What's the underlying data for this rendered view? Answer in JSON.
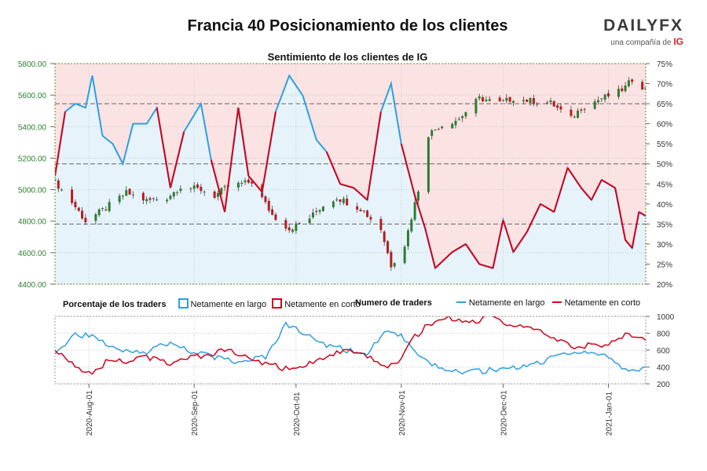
{
  "title": "Francia 40 Posicionamiento de los clientes",
  "subtitle": "Sentimiento de los clientes de IG",
  "brand": {
    "name": "DAILYFX",
    "tagline": "una compañía de",
    "ig": "IG"
  },
  "legend": {
    "pct_header": "Porcentaje de los traders",
    "pct_long": "Netamente en largo",
    "pct_short": "Netamente en corto",
    "num_header": "Numero de traders",
    "num_long": "Netamente en largo",
    "num_short": "Netamente en corto"
  },
  "colors": {
    "long": "#2f9fe0",
    "short": "#d0021b",
    "long_fill": "#e6f3fb",
    "short_fill": "#fbe3e3",
    "candle_up": "#2e7d32",
    "candle_down": "#b71c1c"
  },
  "chart_data": [
    {
      "type": "candlestick",
      "title": "Sentimiento de los clientes de IG",
      "x_range": [
        "2020-07-22",
        "2021-01-12"
      ],
      "x_ticks": [
        "2020-Aug-01",
        "2020-Sep-01",
        "2020-Oct-01",
        "2020-Nov-01",
        "2020-Dec-01",
        "2021-Jan-01"
      ],
      "y_left_ticks": [
        "4400.00",
        "4600.00",
        "4800.00",
        "5000.00",
        "5200.00",
        "5400.00",
        "5600.00",
        "5800.00"
      ],
      "ylim_left": [
        4400,
        5800
      ],
      "y_right_ticks": [
        "20%",
        "25%",
        "30%",
        "35%",
        "40%",
        "45%",
        "50%",
        "55%",
        "60%",
        "65%",
        "70%",
        "75%"
      ],
      "ylim_right": [
        20,
        75
      ],
      "reference_lines_pct": [
        35,
        50,
        65
      ],
      "close_anchors": [
        [
          "2020-07-22",
          5050
        ],
        [
          "2020-07-27",
          4920
        ],
        [
          "2020-07-31",
          4800
        ],
        [
          "2020-08-05",
          4870
        ],
        [
          "2020-08-12",
          4980
        ],
        [
          "2020-08-18",
          4930
        ],
        [
          "2020-08-24",
          4950
        ],
        [
          "2020-08-28",
          5020
        ],
        [
          "2020-09-03",
          5000
        ],
        [
          "2020-09-07",
          4960
        ],
        [
          "2020-09-11",
          5020
        ],
        [
          "2020-09-18",
          5050
        ],
        [
          "2020-09-24",
          4840
        ],
        [
          "2020-09-29",
          4750
        ],
        [
          "2020-10-05",
          4820
        ],
        [
          "2020-10-09",
          4900
        ],
        [
          "2020-10-13",
          4950
        ],
        [
          "2020-10-20",
          4880
        ],
        [
          "2020-10-26",
          4750
        ],
        [
          "2020-10-29",
          4520
        ],
        [
          "2020-11-02",
          4650
        ],
        [
          "2020-11-06",
          5000
        ],
        [
          "2020-11-09",
          5350
        ],
        [
          "2020-11-12",
          5400
        ],
        [
          "2020-11-18",
          5450
        ],
        [
          "2020-11-24",
          5580
        ],
        [
          "2020-11-30",
          5550
        ],
        [
          "2020-12-04",
          5580
        ],
        [
          "2020-12-10",
          5560
        ],
        [
          "2020-12-15",
          5550
        ],
        [
          "2020-12-21",
          5450
        ],
        [
          "2020-12-24",
          5520
        ],
        [
          "2020-12-30",
          5580
        ],
        [
          "2021-01-04",
          5620
        ],
        [
          "2021-01-06",
          5650
        ],
        [
          "2021-01-08",
          5700
        ],
        [
          "2021-01-12",
          5640
        ]
      ],
      "net_long_pct_anchors": [
        [
          "2020-07-22",
          47
        ],
        [
          "2020-07-25",
          63
        ],
        [
          "2020-07-28",
          65
        ],
        [
          "2020-07-31",
          64
        ],
        [
          "2020-08-02",
          72
        ],
        [
          "2020-08-05",
          57
        ],
        [
          "2020-08-08",
          55
        ],
        [
          "2020-08-11",
          50
        ],
        [
          "2020-08-14",
          60
        ],
        [
          "2020-08-18",
          60
        ],
        [
          "2020-08-21",
          64
        ],
        [
          "2020-08-25",
          44
        ],
        [
          "2020-08-29",
          58
        ],
        [
          "2020-09-03",
          65
        ],
        [
          "2020-09-06",
          51
        ],
        [
          "2020-09-10",
          38
        ],
        [
          "2020-09-14",
          64
        ],
        [
          "2020-09-17",
          47
        ],
        [
          "2020-09-21",
          43
        ],
        [
          "2020-09-25",
          63
        ],
        [
          "2020-09-29",
          72
        ],
        [
          "2020-10-03",
          67
        ],
        [
          "2020-10-07",
          56
        ],
        [
          "2020-10-10",
          53
        ],
        [
          "2020-10-14",
          45
        ],
        [
          "2020-10-18",
          44
        ],
        [
          "2020-10-22",
          41
        ],
        [
          "2020-10-26",
          63
        ],
        [
          "2020-10-29",
          70
        ],
        [
          "2020-11-01",
          55
        ],
        [
          "2020-11-05",
          42
        ],
        [
          "2020-11-08",
          34
        ],
        [
          "2020-11-11",
          24
        ],
        [
          "2020-11-16",
          28
        ],
        [
          "2020-11-20",
          30
        ],
        [
          "2020-11-24",
          25
        ],
        [
          "2020-11-28",
          24
        ],
        [
          "2020-12-01",
          36
        ],
        [
          "2020-12-04",
          28
        ],
        [
          "2020-12-08",
          33
        ],
        [
          "2020-12-12",
          40
        ],
        [
          "2020-12-16",
          38
        ],
        [
          "2020-12-20",
          49
        ],
        [
          "2020-12-24",
          44
        ],
        [
          "2020-12-27",
          41
        ],
        [
          "2020-12-30",
          46
        ],
        [
          "2021-01-03",
          44
        ],
        [
          "2021-01-06",
          31
        ],
        [
          "2021-01-08",
          29
        ],
        [
          "2021-01-10",
          38
        ],
        [
          "2021-01-12",
          37
        ]
      ]
    },
    {
      "type": "line",
      "title": "Numero de traders",
      "y_ticks": [
        "200",
        "400",
        "600",
        "800",
        "1000"
      ],
      "ylim": [
        200,
        1000
      ],
      "series": [
        {
          "name": "Netamente en largo",
          "anchors": [
            [
              "2020-07-22",
              550
            ],
            [
              "2020-07-28",
              800
            ],
            [
              "2020-08-02",
              750
            ],
            [
              "2020-08-06",
              680
            ],
            [
              "2020-08-12",
              600
            ],
            [
              "2020-08-18",
              580
            ],
            [
              "2020-08-24",
              680
            ],
            [
              "2020-08-30",
              600
            ],
            [
              "2020-09-05",
              540
            ],
            [
              "2020-09-10",
              480
            ],
            [
              "2020-09-16",
              460
            ],
            [
              "2020-09-22",
              520
            ],
            [
              "2020-09-28",
              900
            ],
            [
              "2020-10-04",
              780
            ],
            [
              "2020-10-10",
              660
            ],
            [
              "2020-10-16",
              600
            ],
            [
              "2020-10-22",
              560
            ],
            [
              "2020-10-28",
              860
            ],
            [
              "2020-11-01",
              760
            ],
            [
              "2020-11-05",
              560
            ],
            [
              "2020-11-09",
              440
            ],
            [
              "2020-11-15",
              360
            ],
            [
              "2020-11-21",
              340
            ],
            [
              "2020-11-27",
              360
            ],
            [
              "2020-12-03",
              380
            ],
            [
              "2020-12-09",
              420
            ],
            [
              "2020-12-15",
              500
            ],
            [
              "2020-12-21",
              580
            ],
            [
              "2020-12-27",
              560
            ],
            [
              "2021-01-02",
              500
            ],
            [
              "2021-01-07",
              320
            ],
            [
              "2021-01-12",
              420
            ]
          ]
        },
        {
          "name": "Netamente en corto",
          "anchors": [
            [
              "2020-07-22",
              620
            ],
            [
              "2020-07-28",
              420
            ],
            [
              "2020-08-02",
              300
            ],
            [
              "2020-08-06",
              460
            ],
            [
              "2020-08-12",
              470
            ],
            [
              "2020-08-18",
              520
            ],
            [
              "2020-08-24",
              440
            ],
            [
              "2020-08-30",
              500
            ],
            [
              "2020-09-05",
              540
            ],
            [
              "2020-09-10",
              600
            ],
            [
              "2020-09-16",
              520
            ],
            [
              "2020-09-22",
              440
            ],
            [
              "2020-09-28",
              380
            ],
            [
              "2020-10-04",
              420
            ],
            [
              "2020-10-10",
              540
            ],
            [
              "2020-10-16",
              580
            ],
            [
              "2020-10-22",
              520
            ],
            [
              "2020-10-28",
              400
            ],
            [
              "2020-11-01",
              500
            ],
            [
              "2020-11-05",
              760
            ],
            [
              "2020-11-09",
              900
            ],
            [
              "2020-11-15",
              980
            ],
            [
              "2020-11-21",
              920
            ],
            [
              "2020-11-27",
              1000
            ],
            [
              "2020-12-03",
              900
            ],
            [
              "2020-12-09",
              860
            ],
            [
              "2020-12-15",
              760
            ],
            [
              "2020-12-21",
              640
            ],
            [
              "2020-12-27",
              660
            ],
            [
              "2021-01-02",
              680
            ],
            [
              "2021-01-07",
              800
            ],
            [
              "2021-01-12",
              720
            ]
          ]
        }
      ]
    }
  ]
}
